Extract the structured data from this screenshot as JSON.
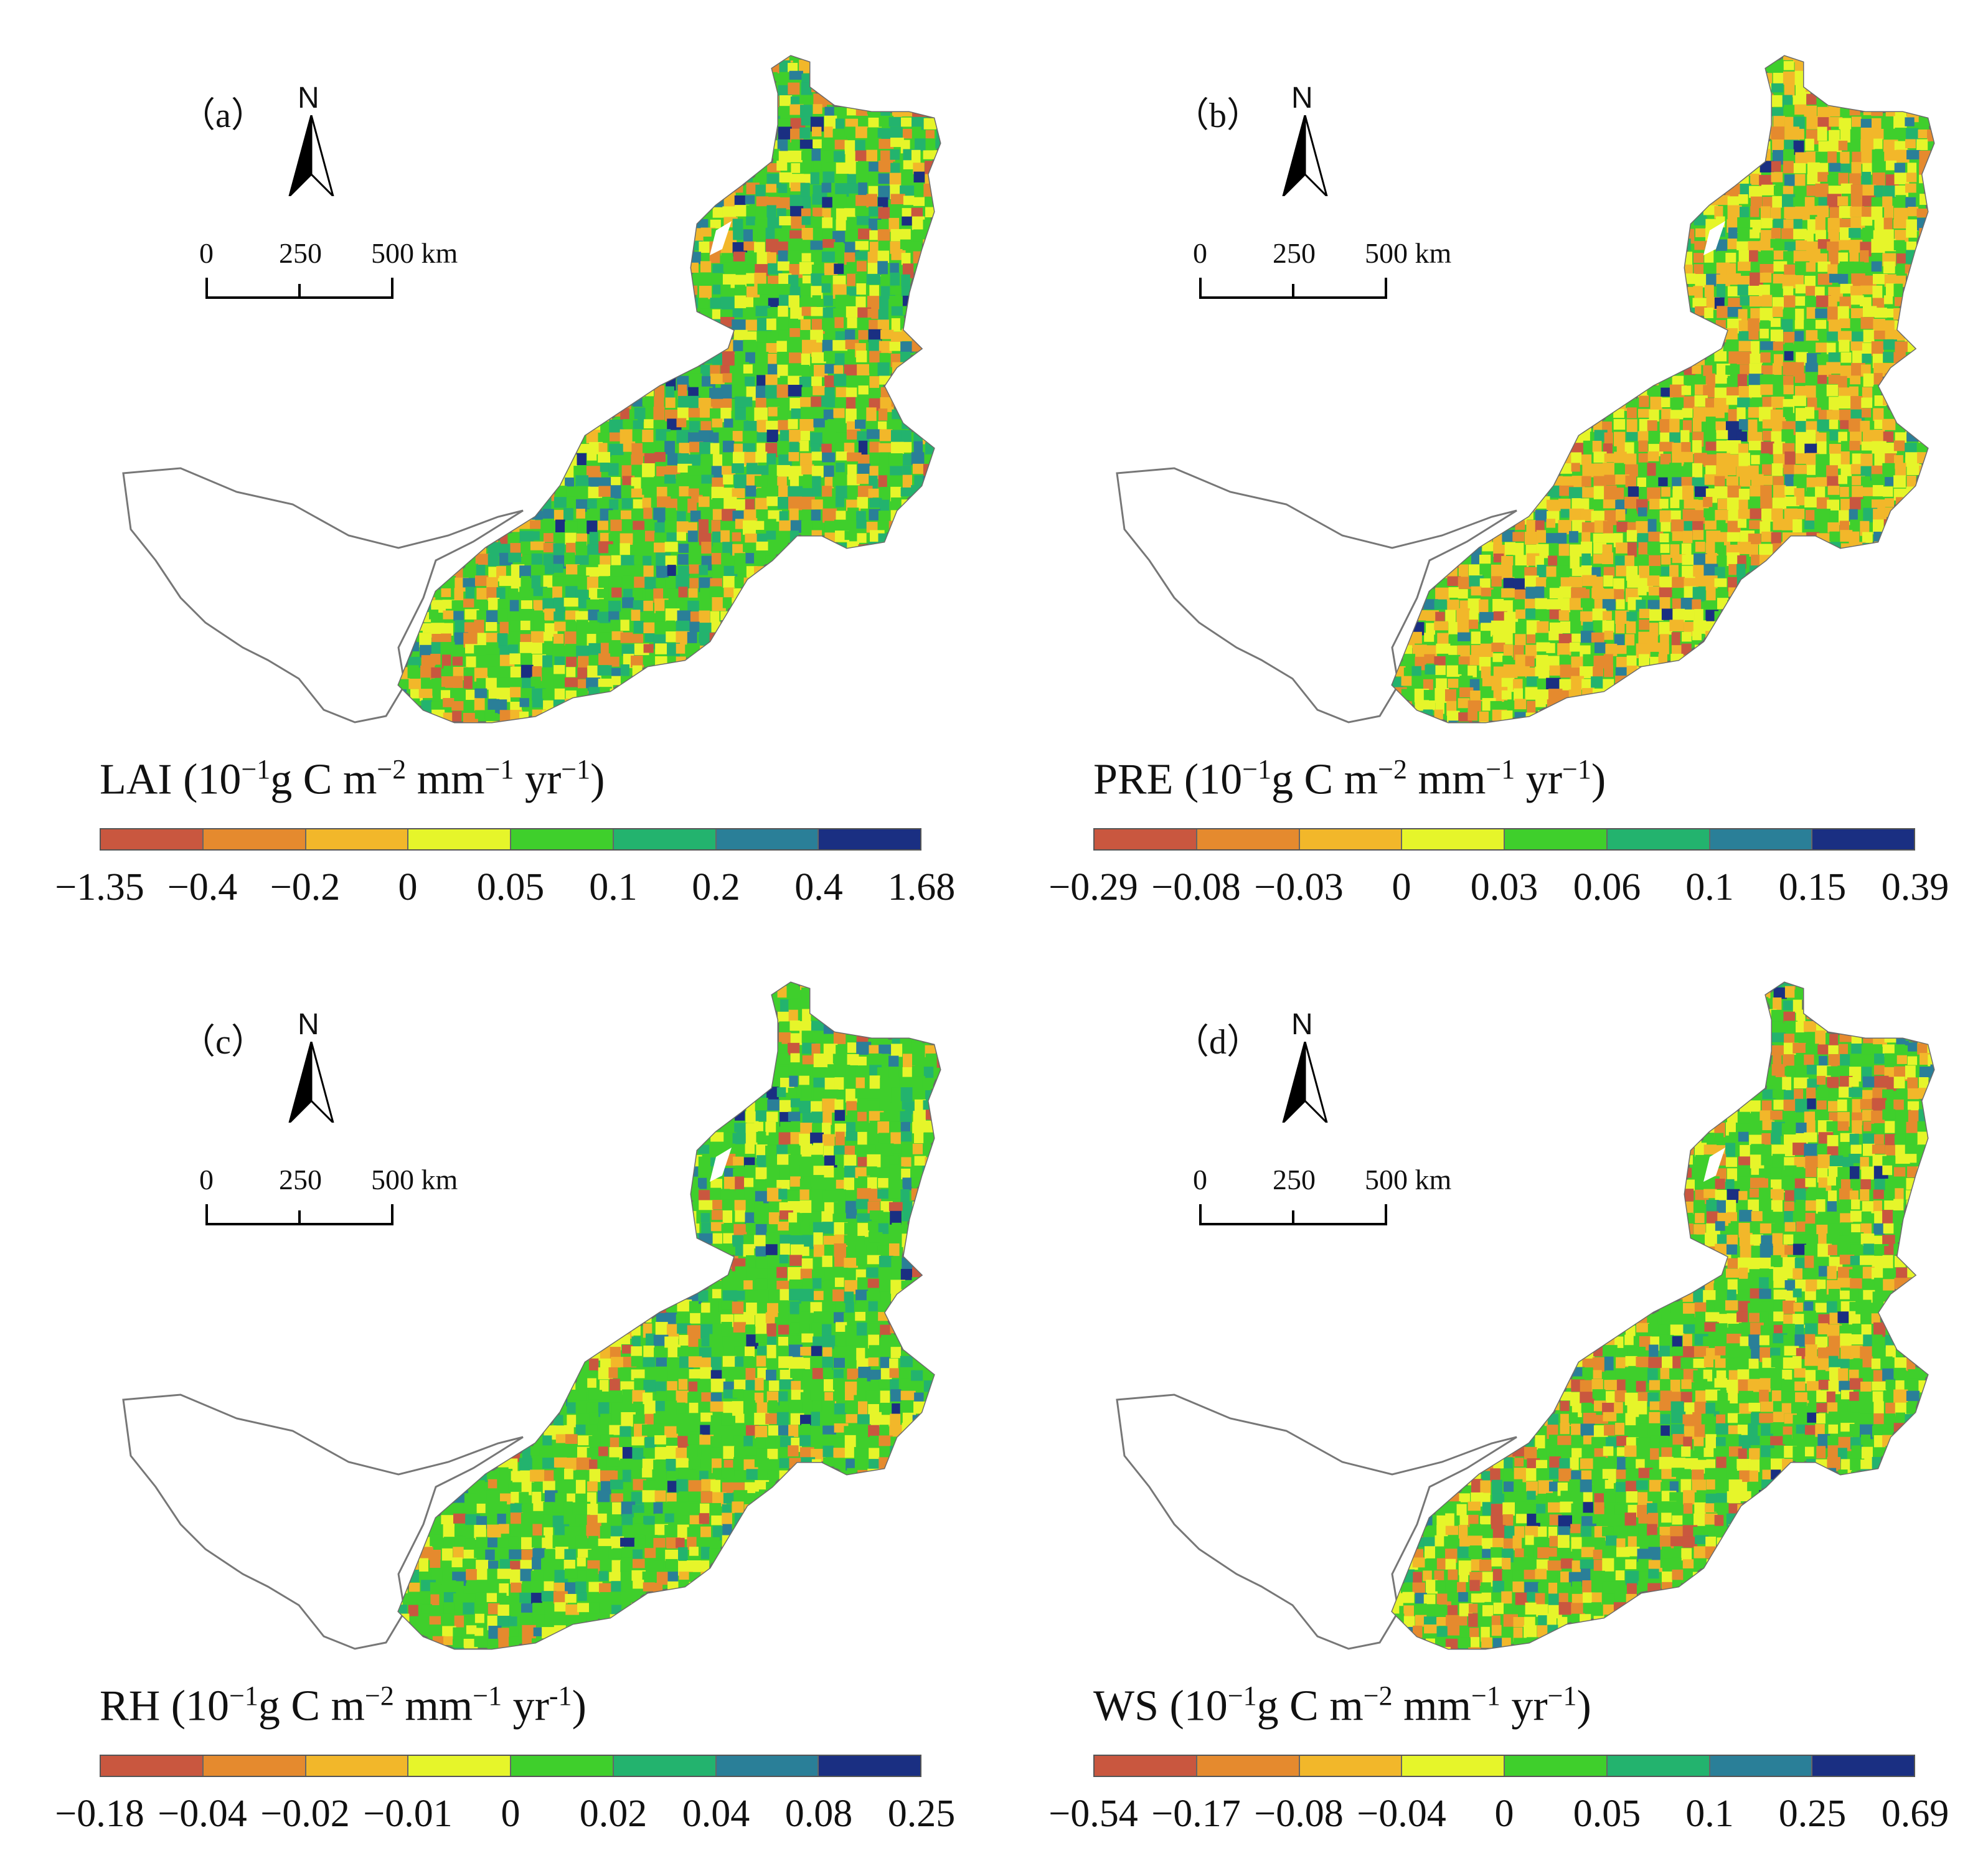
{
  "palette": [
    "#c9573f",
    "#e58a2e",
    "#f2b72a",
    "#e6f52a",
    "#3fcf2c",
    "#23b36e",
    "#2a7f98",
    "#1a2f82"
  ],
  "scale_bar": {
    "zero": "0",
    "mid": "250",
    "end": "500 km"
  },
  "north_letter": "N",
  "panels": [
    {
      "label": "（a）",
      "variable": "LAI",
      "unit_parts": {
        "pre": "(10",
        "e1": "−1",
        "g": "g C m",
        "e2": "−2",
        "mm": " mm",
        "e3": "−1",
        "yr": " yr",
        "e4": "−1",
        "close": ")"
      },
      "ticks": [
        "−1.35",
        "−0.4",
        "−0.2",
        "0",
        "0.05",
        "0.1",
        "0.2",
        "0.4",
        "1.68"
      ]
    },
    {
      "label": "（b）",
      "variable": "PRE",
      "unit_parts": {
        "pre": "(10",
        "e1": "−1",
        "g": "g C m",
        "e2": "−2",
        "mm": " mm",
        "e3": "−1",
        "yr": " yr",
        "e4": "−1",
        "close": ")"
      },
      "ticks": [
        "−0.29",
        "−0.08",
        "−0.03",
        "0",
        "0.03",
        "0.06",
        "0.1",
        "0.15",
        "0.39"
      ]
    },
    {
      "label": "（c）",
      "variable": "RH",
      "unit_parts": {
        "pre": "(10",
        "e1": "−1",
        "g": "g C m",
        "e2": "−2",
        "mm": " mm",
        "e3": "−1",
        "yr": " yr",
        "e4": "-1",
        "close": ")"
      },
      "ticks": [
        "−0.18",
        "−0.04",
        "−0.02",
        "−0.01",
        "0",
        "0.02",
        "0.04",
        "0.08",
        "0.25"
      ]
    },
    {
      "label": "（d）",
      "variable": "WS",
      "unit_parts": {
        "pre": "(10",
        "e1": "−1",
        "g": "g C m",
        "e2": "−2",
        "mm": " mm",
        "e3": "−1",
        "yr": " yr",
        "e4": "−1",
        "close": ")"
      },
      "ticks": [
        "−0.54",
        "−0.17",
        "−0.08",
        "−0.04",
        "0",
        "0.05",
        "0.1",
        "0.25",
        "0.69"
      ]
    }
  ],
  "panel_fill_weights": {
    "a": [
      0.04,
      0.1,
      0.14,
      0.16,
      0.28,
      0.18,
      0.08,
      0.02
    ],
    "b": [
      0.04,
      0.14,
      0.3,
      0.28,
      0.12,
      0.06,
      0.04,
      0.02
    ],
    "c": [
      0.03,
      0.06,
      0.08,
      0.2,
      0.45,
      0.12,
      0.05,
      0.01
    ],
    "d": [
      0.06,
      0.12,
      0.14,
      0.22,
      0.32,
      0.09,
      0.04,
      0.01
    ]
  }
}
